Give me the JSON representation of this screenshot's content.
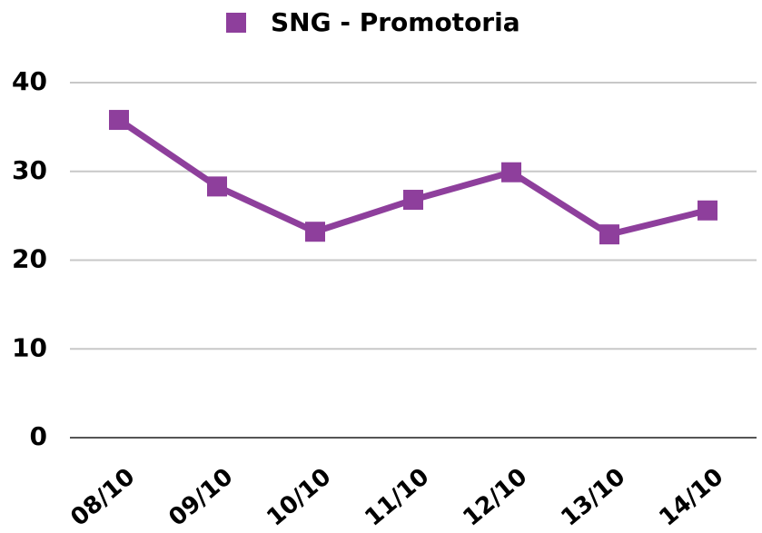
{
  "chart_data": {
    "type": "line",
    "categories": [
      "08/10",
      "09/10",
      "10/10",
      "11/10",
      "12/10",
      "13/10",
      "14/10"
    ],
    "series": [
      {
        "name": "SNG - Promotoria",
        "color": "#8e3f9c",
        "values": [
          35.8,
          28.3,
          23.2,
          26.8,
          29.9,
          22.9,
          25.6
        ]
      }
    ],
    "ylim": [
      0,
      40
    ],
    "yticks": [
      0,
      10,
      20,
      30,
      40
    ],
    "grid": true,
    "legend": "top"
  }
}
